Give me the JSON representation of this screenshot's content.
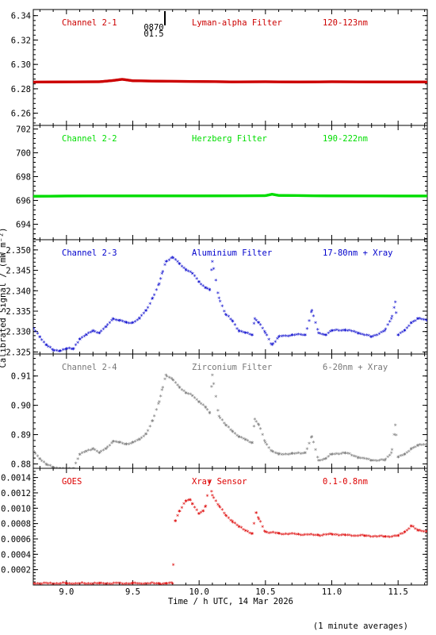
{
  "figure": {
    "x_axis_label": "Time / h UTC, 14 Mar 2026",
    "y_axis_label": "Calibrated Signal / (mW m⁻²)",
    "footnote": "(1 minute averages)",
    "marker_label_top": "0870",
    "marker_label_bottom": "01.5"
  },
  "chart_data": [
    {
      "type": "line",
      "title": "Channel 2-1",
      "filter": "Lyman-alpha Filter",
      "band": "120-123nm",
      "color": "#cc0000",
      "xlim": [
        8.75,
        11.72
      ],
      "ylim": [
        6.25,
        6.345
      ],
      "yticks": [
        6.26,
        6.28,
        6.3,
        6.32,
        6.34
      ],
      "ytick_labels": [
        "6.26",
        "6.28",
        "6.30",
        "6.32",
        "6.34"
      ],
      "marker": "dot",
      "x": [
        8.75,
        9.0,
        9.25,
        9.35,
        9.42,
        9.5,
        9.75,
        10.0,
        10.25,
        10.5,
        10.75,
        11.0,
        11.25,
        11.5,
        11.72
      ],
      "y": [
        6.2855,
        6.2857,
        6.2858,
        6.2868,
        6.2878,
        6.2866,
        6.2862,
        6.286,
        6.2857,
        6.2858,
        6.2856,
        6.2858,
        6.2857,
        6.2856,
        6.2856
      ]
    },
    {
      "type": "line",
      "title": "Channel 2-2",
      "filter": "Herzberg Filter",
      "band": "190-222nm",
      "color": "#00dd00",
      "xlim": [
        8.75,
        11.72
      ],
      "ylim": [
        692.7,
        702.3
      ],
      "yticks": [
        694,
        696,
        698,
        700,
        702
      ],
      "ytick_labels": [
        "694",
        "696",
        "698",
        "700",
        "702"
      ],
      "marker": "dot",
      "x": [
        8.75,
        9.0,
        9.5,
        10.0,
        10.5,
        10.55,
        10.6,
        11.0,
        11.5,
        11.72
      ],
      "y": [
        696.35,
        696.37,
        696.38,
        696.38,
        696.4,
        696.52,
        696.42,
        696.38,
        696.37,
        696.37
      ]
    },
    {
      "type": "scatter",
      "title": "Channel 2-3",
      "filter": "Aluminium Filter",
      "band": "17-80nm + Xray",
      "color": "#0000cc",
      "xlim": [
        8.75,
        11.72
      ],
      "ylim": [
        2.3245,
        2.3525
      ],
      "yticks": [
        2.325,
        2.33,
        2.335,
        2.34,
        2.345,
        2.35
      ],
      "ytick_labels": [
        "2.325",
        "2.330",
        "2.335",
        "2.340",
        "2.345",
        "2.350"
      ],
      "marker": "star",
      "x": [
        8.75,
        8.8,
        8.85,
        8.9,
        8.95,
        9.0,
        9.05,
        9.1,
        9.15,
        9.2,
        9.25,
        9.3,
        9.35,
        9.4,
        9.45,
        9.5,
        9.55,
        9.6,
        9.65,
        9.7,
        9.72,
        9.75,
        9.8,
        9.85,
        9.9,
        9.95,
        10.0,
        10.05,
        10.08,
        10.1,
        10.15,
        10.2,
        10.25,
        10.3,
        10.35,
        10.4,
        10.42,
        10.45,
        10.5,
        10.55,
        10.6,
        10.7,
        10.8,
        10.85,
        10.9,
        10.95,
        11.0,
        11.1,
        11.2,
        11.3,
        11.4,
        11.45,
        11.48,
        11.5,
        11.55,
        11.6,
        11.65,
        11.72
      ],
      "y": [
        2.3305,
        2.3285,
        2.3265,
        2.3252,
        2.3251,
        2.3256,
        2.3255,
        2.328,
        2.329,
        2.33,
        2.3295,
        2.331,
        2.333,
        2.3325,
        2.332,
        2.332,
        2.333,
        2.335,
        2.338,
        2.3415,
        2.344,
        2.347,
        2.348,
        2.3465,
        2.345,
        2.344,
        2.342,
        2.3405,
        2.34,
        2.347,
        2.338,
        2.334,
        2.3325,
        2.33,
        2.3295,
        2.329,
        2.333,
        2.332,
        2.3295,
        2.3265,
        2.3285,
        2.329,
        2.329,
        2.335,
        2.3295,
        2.329,
        2.33,
        2.3302,
        2.3295,
        2.3285,
        2.33,
        2.333,
        2.337,
        2.329,
        2.33,
        2.332,
        2.333,
        2.3325
      ]
    },
    {
      "type": "scatter",
      "title": "Channel 2-4",
      "filter": "Zirconium Filter",
      "band": "6-20nm + Xray",
      "color": "#777777",
      "xlim": [
        8.75,
        11.72
      ],
      "ylim": [
        0.8785,
        0.9175
      ],
      "yticks": [
        0.88,
        0.89,
        0.9,
        0.91
      ],
      "ytick_labels": [
        "0.88",
        "0.89",
        "0.90",
        "0.91"
      ],
      "marker": "star",
      "x": [
        8.75,
        8.8,
        8.85,
        8.9,
        8.95,
        9.0,
        9.05,
        9.1,
        9.15,
        9.2,
        9.25,
        9.3,
        9.35,
        9.4,
        9.45,
        9.5,
        9.55,
        9.6,
        9.65,
        9.7,
        9.72,
        9.75,
        9.8,
        9.85,
        9.9,
        9.95,
        10.0,
        10.05,
        10.08,
        10.1,
        10.15,
        10.2,
        10.25,
        10.3,
        10.35,
        10.4,
        10.42,
        10.45,
        10.5,
        10.55,
        10.6,
        10.7,
        10.8,
        10.85,
        10.9,
        10.95,
        11.0,
        11.1,
        11.2,
        11.3,
        11.4,
        11.45,
        11.48,
        11.5,
        11.55,
        11.6,
        11.65,
        11.72
      ],
      "y": [
        0.884,
        0.8815,
        0.8795,
        0.8785,
        0.8782,
        0.878,
        0.878,
        0.883,
        0.884,
        0.885,
        0.8835,
        0.885,
        0.8875,
        0.887,
        0.8865,
        0.887,
        0.888,
        0.89,
        0.8945,
        0.901,
        0.905,
        0.91,
        0.9085,
        0.906,
        0.904,
        0.903,
        0.901,
        0.899,
        0.897,
        0.91,
        0.896,
        0.893,
        0.891,
        0.889,
        0.888,
        0.887,
        0.895,
        0.893,
        0.887,
        0.884,
        0.883,
        0.8832,
        0.8835,
        0.889,
        0.881,
        0.8815,
        0.883,
        0.8835,
        0.882,
        0.881,
        0.881,
        0.8835,
        0.893,
        0.882,
        0.883,
        0.885,
        0.886,
        0.8865
      ]
    },
    {
      "type": "scatter",
      "title": "GOES",
      "filter": "Xray Sensor",
      "band": "0.1-0.8nm",
      "color": "#dd0000",
      "xlim": [
        8.75,
        11.72
      ],
      "ylim": [
        0.0,
        0.00152
      ],
      "yticks": [
        0.0002,
        0.0004,
        0.0006,
        0.0008,
        0.001,
        0.0012,
        0.0014
      ],
      "ytick_labels": [
        "0.0002",
        "0.0004",
        "0.0006",
        "0.0008",
        "0.0010",
        "0.0012",
        "0.0014"
      ],
      "marker": "star",
      "x": [
        8.75,
        9.0,
        9.25,
        9.5,
        9.7,
        9.75,
        9.8,
        9.82,
        9.85,
        9.9,
        9.93,
        9.95,
        10.0,
        10.03,
        10.05,
        10.08,
        10.1,
        10.15,
        10.2,
        10.25,
        10.3,
        10.35,
        10.4,
        10.43,
        10.45,
        10.5,
        10.6,
        10.75,
        10.9,
        11.0,
        11.1,
        11.25,
        11.4,
        11.5,
        11.55,
        11.6,
        11.65,
        11.72
      ],
      "y": [
        1e-05,
        1e-05,
        1e-05,
        1e-05,
        1e-05,
        1e-05,
        1e-05,
        0.00082,
        0.00095,
        0.00108,
        0.0011,
        0.00105,
        0.00092,
        0.00095,
        0.00102,
        0.00135,
        0.00116,
        0.00102,
        0.0009,
        0.00082,
        0.00075,
        0.0007,
        0.00066,
        0.00093,
        0.00085,
        0.00068,
        0.00066,
        0.00065,
        0.00064,
        0.00065,
        0.00064,
        0.00063,
        0.00062,
        0.00063,
        0.00068,
        0.00076,
        0.0007,
        0.00069
      ]
    }
  ],
  "x_axis": {
    "ticks": [
      9.0,
      9.5,
      10.0,
      10.5,
      11.0,
      11.5
    ],
    "tick_labels": [
      "9.0",
      "9.5",
      "10.0",
      "10.5",
      "11.0",
      "11.5"
    ]
  }
}
